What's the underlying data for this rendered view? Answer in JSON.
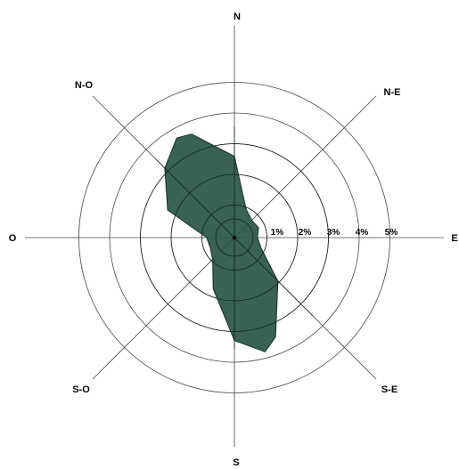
{
  "chart_data": {
    "type": "radar",
    "directions": [
      "N",
      "N-E",
      "E",
      "S-E",
      "S",
      "S-O",
      "O",
      "N-O"
    ],
    "ring_labels": [
      "1%",
      "2%",
      "3%",
      "4%",
      "5%"
    ],
    "r_range": [
      0,
      5
    ],
    "grid": true,
    "series_color": "#2f5a4a",
    "series_points": [
      {
        "angle_deg": 0,
        "r": 2.65
      },
      {
        "angle_deg": 22.5,
        "r": 1.0
      },
      {
        "angle_deg": 45,
        "r": 0.8
      },
      {
        "angle_deg": 67.5,
        "r": 0.85
      },
      {
        "angle_deg": 90,
        "r": 0.75
      },
      {
        "angle_deg": 112.5,
        "r": 0.95
      },
      {
        "angle_deg": 135,
        "r": 2.0
      },
      {
        "angle_deg": 157.5,
        "r": 3.5
      },
      {
        "angle_deg": 165,
        "r": 3.85
      },
      {
        "angle_deg": 180,
        "r": 3.35
      },
      {
        "angle_deg": 202.5,
        "r": 1.8
      },
      {
        "angle_deg": 225,
        "r": 1.0
      },
      {
        "angle_deg": 247.5,
        "r": 0.85
      },
      {
        "angle_deg": 270,
        "r": 0.9
      },
      {
        "angle_deg": 292.5,
        "r": 2.35
      },
      {
        "angle_deg": 315,
        "r": 3.2
      },
      {
        "angle_deg": 330,
        "r": 3.75
      },
      {
        "angle_deg": 337.5,
        "r": 3.65
      }
    ]
  }
}
